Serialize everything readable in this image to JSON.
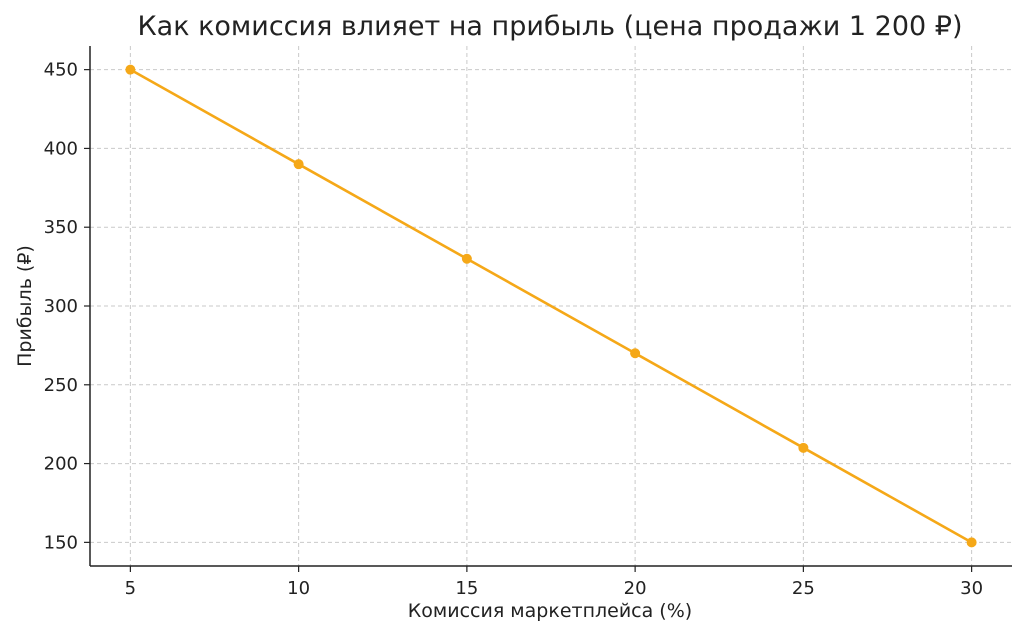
{
  "chart_data": {
    "type": "line",
    "title": "Как комиссия влияет на прибыль (цена продажи 1 200 ₽)",
    "xlabel": "Комиссия маркетплейса (%)",
    "ylabel": "Прибыль (₽)",
    "x": [
      5,
      10,
      15,
      20,
      25,
      30
    ],
    "series": [
      {
        "values": [
          450,
          390,
          330,
          270,
          210,
          150
        ]
      }
    ],
    "xlim": [
      3.8,
      31.2
    ],
    "ylim": [
      135,
      465
    ],
    "xticks": [
      5,
      10,
      15,
      20,
      25,
      30
    ],
    "yticks": [
      150,
      200,
      250,
      300,
      350,
      400,
      450
    ],
    "grid": true,
    "legend": "none",
    "colors": {
      "line": "#f5a818",
      "marker": "#f5a818",
      "axis": "#222222",
      "grid": "#c9c9c9"
    }
  }
}
